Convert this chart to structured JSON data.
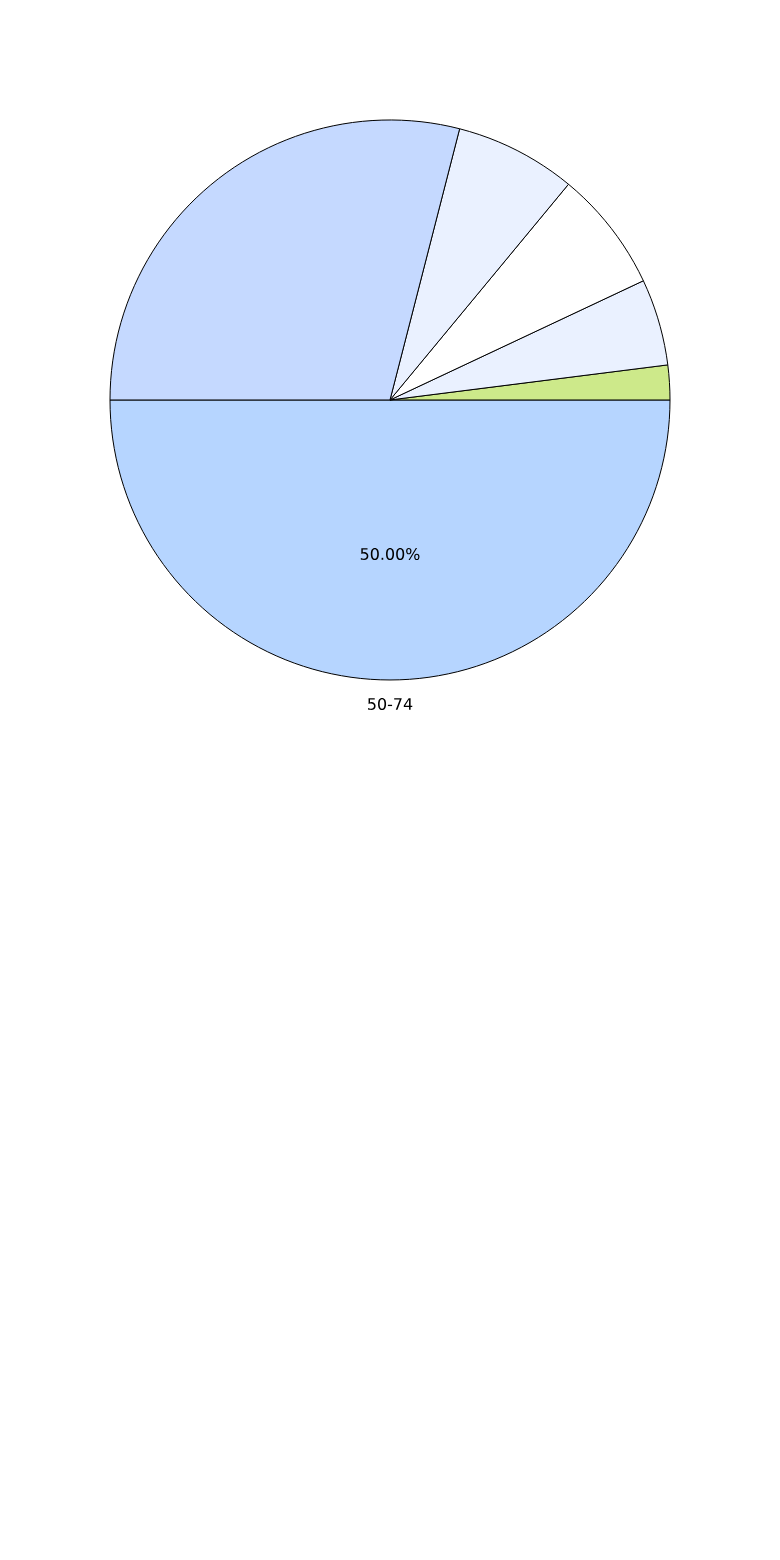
{
  "chart_data": {
    "type": "pie",
    "categories": [
      "50-74",
      null,
      null,
      null,
      null,
      null
    ],
    "values": [
      50,
      2,
      5,
      7,
      7,
      29
    ],
    "colors": [
      "#b6d5ff",
      "#cde98a",
      "#eaf1ff",
      "#ffffff",
      "#eaf1ff",
      "#c5d9ff"
    ],
    "value_labels": [
      "50.00%",
      null,
      null,
      null,
      null,
      null
    ]
  }
}
